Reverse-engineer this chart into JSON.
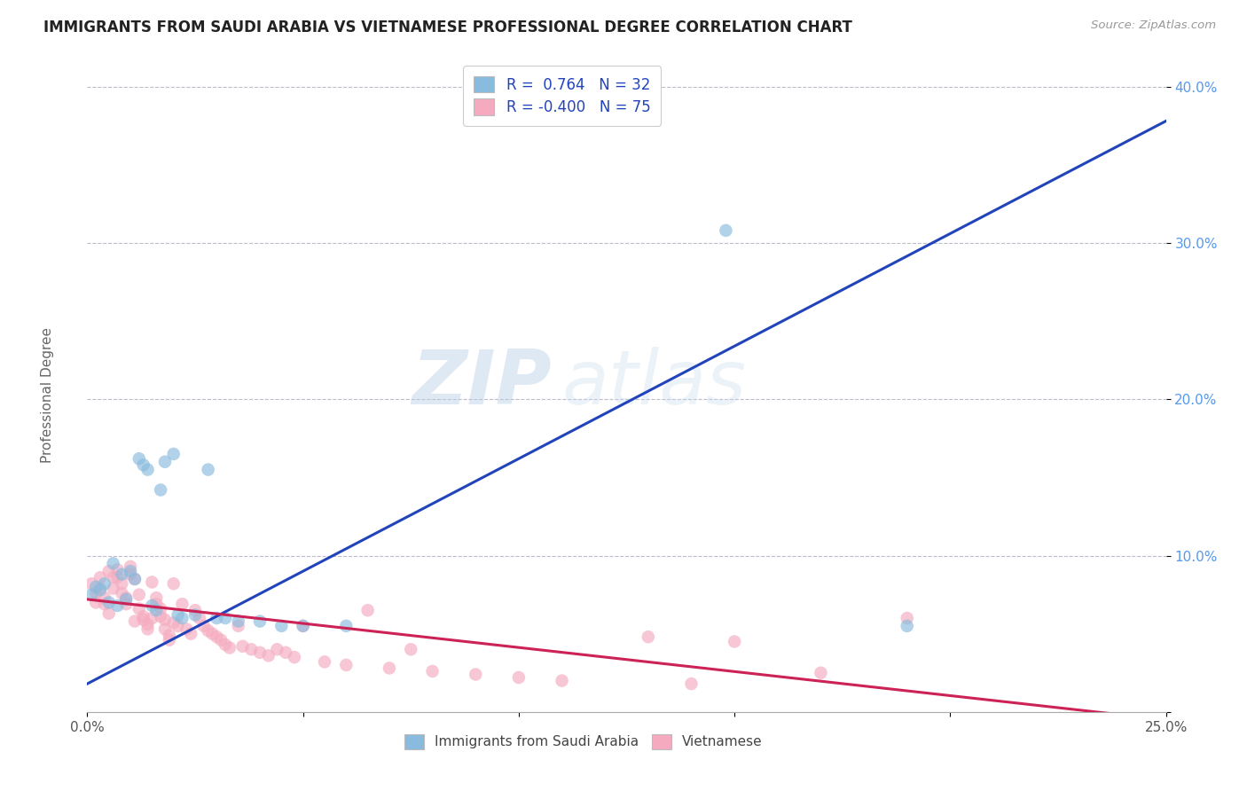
{
  "title": "IMMIGRANTS FROM SAUDI ARABIA VS VIETNAMESE PROFESSIONAL DEGREE CORRELATION CHART",
  "source": "Source: ZipAtlas.com",
  "ylabel": "Professional Degree",
  "xlim": [
    0.0,
    0.25
  ],
  "ylim": [
    0.0,
    0.42
  ],
  "x_ticks": [
    0.0,
    0.05,
    0.1,
    0.15,
    0.2,
    0.25
  ],
  "x_tick_labels": [
    "0.0%",
    "",
    "",
    "",
    "",
    "25.0%"
  ],
  "y_ticks": [
    0.0,
    0.1,
    0.2,
    0.3,
    0.4
  ],
  "y_tick_labels": [
    "",
    "10.0%",
    "20.0%",
    "30.0%",
    "40.0%"
  ],
  "grid_color": "#bbbbcc",
  "background_color": "#ffffff",
  "blue_color": "#88bbdd",
  "pink_color": "#f5aac0",
  "blue_line_color": "#2244bb",
  "pink_line_color": "#cc2255",
  "legend_r1": "R =  0.764   N = 32",
  "legend_r2": "R = -0.400   N = 75",
  "blue_line": [
    [
      0.0,
      0.018
    ],
    [
      0.25,
      0.378
    ]
  ],
  "pink_line": [
    [
      0.0,
      0.072
    ],
    [
      0.25,
      -0.005
    ]
  ],
  "blue_scatter": [
    [
      0.001,
      0.075
    ],
    [
      0.002,
      0.08
    ],
    [
      0.003,
      0.078
    ],
    [
      0.004,
      0.082
    ],
    [
      0.005,
      0.07
    ],
    [
      0.006,
      0.095
    ],
    [
      0.007,
      0.068
    ],
    [
      0.008,
      0.088
    ],
    [
      0.009,
      0.072
    ],
    [
      0.01,
      0.09
    ],
    [
      0.011,
      0.085
    ],
    [
      0.012,
      0.162
    ],
    [
      0.013,
      0.158
    ],
    [
      0.014,
      0.155
    ],
    [
      0.015,
      0.068
    ],
    [
      0.016,
      0.065
    ],
    [
      0.017,
      0.142
    ],
    [
      0.018,
      0.16
    ],
    [
      0.02,
      0.165
    ],
    [
      0.021,
      0.062
    ],
    [
      0.022,
      0.06
    ],
    [
      0.025,
      0.062
    ],
    [
      0.028,
      0.155
    ],
    [
      0.03,
      0.06
    ],
    [
      0.032,
      0.06
    ],
    [
      0.035,
      0.058
    ],
    [
      0.04,
      0.058
    ],
    [
      0.045,
      0.055
    ],
    [
      0.05,
      0.055
    ],
    [
      0.06,
      0.055
    ],
    [
      0.148,
      0.308
    ],
    [
      0.19,
      0.055
    ]
  ],
  "pink_scatter": [
    [
      0.001,
      0.082
    ],
    [
      0.002,
      0.076
    ],
    [
      0.002,
      0.07
    ],
    [
      0.003,
      0.086
    ],
    [
      0.003,
      0.079
    ],
    [
      0.004,
      0.073
    ],
    [
      0.004,
      0.069
    ],
    [
      0.005,
      0.09
    ],
    [
      0.005,
      0.063
    ],
    [
      0.006,
      0.086
    ],
    [
      0.006,
      0.079
    ],
    [
      0.007,
      0.091
    ],
    [
      0.007,
      0.086
    ],
    [
      0.008,
      0.082
    ],
    [
      0.008,
      0.076
    ],
    [
      0.009,
      0.073
    ],
    [
      0.009,
      0.069
    ],
    [
      0.01,
      0.093
    ],
    [
      0.01,
      0.088
    ],
    [
      0.011,
      0.085
    ],
    [
      0.011,
      0.058
    ],
    [
      0.012,
      0.075
    ],
    [
      0.012,
      0.066
    ],
    [
      0.013,
      0.061
    ],
    [
      0.013,
      0.059
    ],
    [
      0.014,
      0.056
    ],
    [
      0.014,
      0.053
    ],
    [
      0.015,
      0.083
    ],
    [
      0.015,
      0.06
    ],
    [
      0.016,
      0.073
    ],
    [
      0.016,
      0.069
    ],
    [
      0.017,
      0.066
    ],
    [
      0.017,
      0.061
    ],
    [
      0.018,
      0.059
    ],
    [
      0.018,
      0.053
    ],
    [
      0.019,
      0.049
    ],
    [
      0.019,
      0.046
    ],
    [
      0.02,
      0.082
    ],
    [
      0.02,
      0.057
    ],
    [
      0.021,
      0.055
    ],
    [
      0.022,
      0.069
    ],
    [
      0.023,
      0.053
    ],
    [
      0.024,
      0.05
    ],
    [
      0.025,
      0.065
    ],
    [
      0.026,
      0.06
    ],
    [
      0.027,
      0.055
    ],
    [
      0.028,
      0.052
    ],
    [
      0.029,
      0.05
    ],
    [
      0.03,
      0.048
    ],
    [
      0.031,
      0.046
    ],
    [
      0.032,
      0.043
    ],
    [
      0.033,
      0.041
    ],
    [
      0.035,
      0.055
    ],
    [
      0.036,
      0.042
    ],
    [
      0.038,
      0.04
    ],
    [
      0.04,
      0.038
    ],
    [
      0.042,
      0.036
    ],
    [
      0.044,
      0.04
    ],
    [
      0.046,
      0.038
    ],
    [
      0.048,
      0.035
    ],
    [
      0.05,
      0.055
    ],
    [
      0.055,
      0.032
    ],
    [
      0.06,
      0.03
    ],
    [
      0.065,
      0.065
    ],
    [
      0.07,
      0.028
    ],
    [
      0.075,
      0.04
    ],
    [
      0.08,
      0.026
    ],
    [
      0.09,
      0.024
    ],
    [
      0.1,
      0.022
    ],
    [
      0.11,
      0.02
    ],
    [
      0.13,
      0.048
    ],
    [
      0.14,
      0.018
    ],
    [
      0.15,
      0.045
    ],
    [
      0.17,
      0.025
    ],
    [
      0.19,
      0.06
    ]
  ]
}
